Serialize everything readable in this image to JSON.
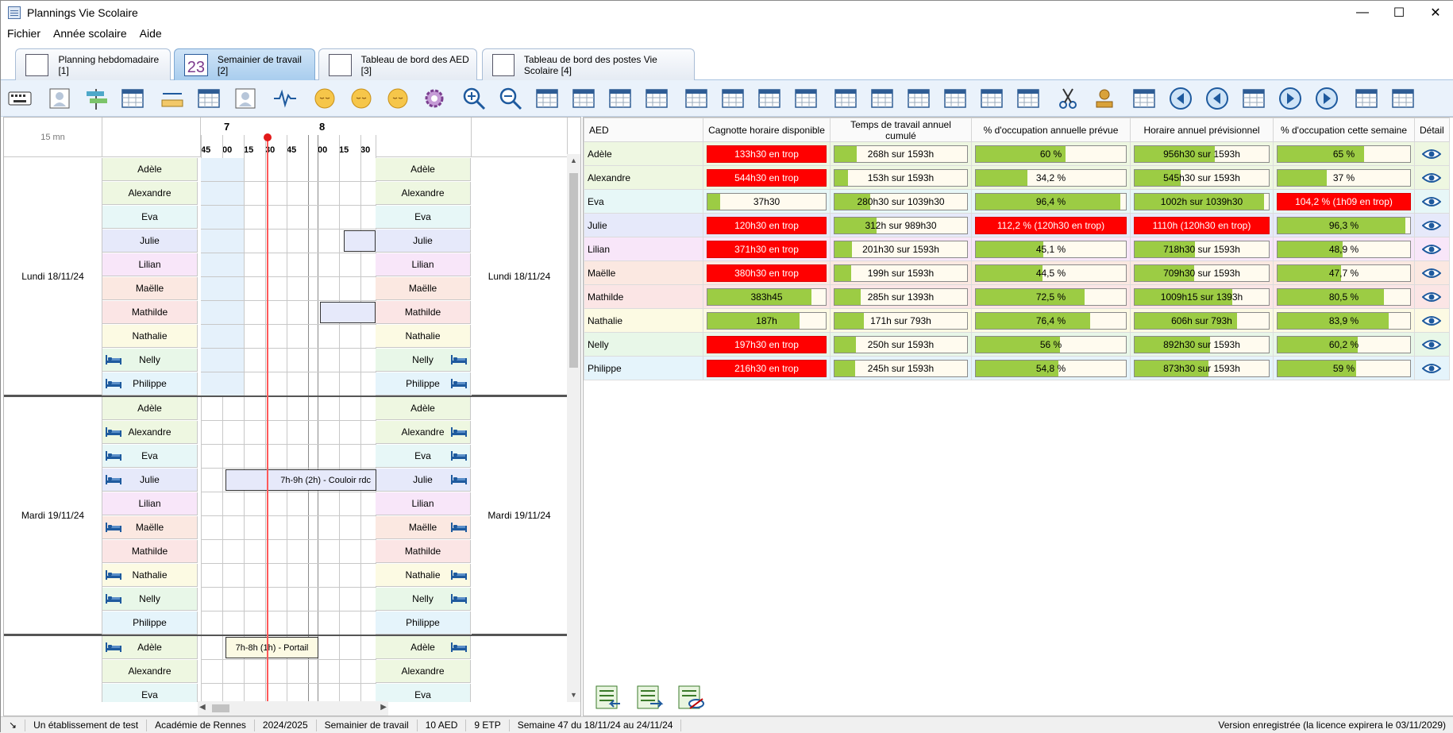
{
  "window": {
    "title": "Plannings Vie Scolaire"
  },
  "menu": [
    "Fichier",
    "Année scolaire",
    "Aide"
  ],
  "tabs": [
    {
      "label": "Planning hebdomadaire [1]",
      "active": false
    },
    {
      "label": "Semainier de travail [2]",
      "active": true
    },
    {
      "label": "Tableau de bord des AED [3]",
      "active": false
    },
    {
      "label": "Tableau de bord des postes Vie Scolaire [4]",
      "active": false
    }
  ],
  "schedule": {
    "interval_label": "15 mn",
    "hours": [
      "7",
      "8"
    ],
    "minutes": [
      "45",
      "00",
      "15",
      "30",
      "45",
      "00",
      "15",
      "30"
    ],
    "days": [
      {
        "label": "Lundi 18/11/24",
        "rows": [
          {
            "name": "Adèle",
            "bed": false,
            "color": "#eef7e1"
          },
          {
            "name": "Alexandre",
            "bed": false,
            "color": "#eef7e1"
          },
          {
            "name": "Eva",
            "bed": false,
            "color": "#e7f7f7"
          },
          {
            "name": "Julie",
            "bed": false,
            "color": "#e6e9fa"
          },
          {
            "name": "Lilian",
            "bed": false,
            "color": "#f8e6f9"
          },
          {
            "name": "Maëlle",
            "bed": false,
            "color": "#fbe8e1"
          },
          {
            "name": "Mathilde",
            "bed": false,
            "color": "#fbe5e5"
          },
          {
            "name": "Nathalie",
            "bed": false,
            "color": "#fcfae3"
          },
          {
            "name": "Nelly",
            "bed": true,
            "color": "#e8f7e8"
          },
          {
            "name": "Philippe",
            "bed": true,
            "color": "#e5f4fb"
          }
        ]
      },
      {
        "label": "Mardi 19/11/24",
        "rows": [
          {
            "name": "Adèle",
            "bed": false,
            "color": "#eef7e1"
          },
          {
            "name": "Alexandre",
            "bed": true,
            "color": "#eef7e1"
          },
          {
            "name": "Eva",
            "bed": true,
            "color": "#e7f7f7"
          },
          {
            "name": "Julie",
            "bed": true,
            "color": "#e6e9fa"
          },
          {
            "name": "Lilian",
            "bed": false,
            "color": "#f8e6f9"
          },
          {
            "name": "Maëlle",
            "bed": true,
            "color": "#fbe8e1"
          },
          {
            "name": "Mathilde",
            "bed": false,
            "color": "#fbe5e5"
          },
          {
            "name": "Nathalie",
            "bed": true,
            "color": "#fcfae3"
          },
          {
            "name": "Nelly",
            "bed": true,
            "color": "#e8f7e8"
          },
          {
            "name": "Philippe",
            "bed": false,
            "color": "#e5f4fb"
          }
        ]
      },
      {
        "label": "",
        "rows": [
          {
            "name": "Adèle",
            "bed": true,
            "color": "#eef7e1"
          },
          {
            "name": "Alexandre",
            "bed": false,
            "color": "#eef7e1"
          },
          {
            "name": "Eva",
            "bed": false,
            "color": "#e7f7f7"
          }
        ]
      }
    ],
    "slots": [
      {
        "label": "7h-9h (2h) - Couloir rdc",
        "day": 1,
        "row": 3
      },
      {
        "label": "7h-8h (1h) - Portail",
        "day": 2,
        "row": 0
      }
    ]
  },
  "dashboard": {
    "columns": [
      "AED",
      "Cagnotte horaire disponible",
      "Temps de travail annuel cumulé",
      "% d'occupation annuelle prévue",
      "Horaire annuel prévisionnel",
      "% d'occupation cette semaine",
      "Détail"
    ],
    "rows": [
      {
        "name": "Adèle",
        "color": "#eef7e1",
        "cagnotte": {
          "text": "133h30 en trop",
          "red": true,
          "fill": 1
        },
        "cumul": {
          "text": "268h sur 1593h",
          "fill": 0.17
        },
        "occ_annee": {
          "text": "60 %",
          "red": false,
          "fill": 0.6
        },
        "horaire": {
          "text": "956h30 sur 1593h",
          "red": false,
          "fill": 0.6
        },
        "occ_semaine": {
          "text": "65 %",
          "red": false,
          "fill": 0.65
        }
      },
      {
        "name": "Alexandre",
        "color": "#eef7e1",
        "cagnotte": {
          "text": "544h30 en trop",
          "red": true,
          "fill": 1
        },
        "cumul": {
          "text": "153h sur 1593h",
          "fill": 0.1
        },
        "occ_annee": {
          "text": "34,2 %",
          "red": false,
          "fill": 0.342
        },
        "horaire": {
          "text": "545h30 sur 1593h",
          "red": false,
          "fill": 0.342
        },
        "occ_semaine": {
          "text": "37 %",
          "red": false,
          "fill": 0.37
        }
      },
      {
        "name": "Eva",
        "color": "#e7f7f7",
        "cagnotte": {
          "text": "37h30",
          "red": false,
          "fill": 0.11
        },
        "cumul": {
          "text": "280h30 sur 1039h30",
          "fill": 0.27
        },
        "occ_annee": {
          "text": "96,4 %",
          "red": false,
          "fill": 0.964
        },
        "horaire": {
          "text": "1002h sur 1039h30",
          "red": false,
          "fill": 0.964
        },
        "occ_semaine": {
          "text": "104,2 % (1h09 en trop)",
          "red": true,
          "fill": 1
        }
      },
      {
        "name": "Julie",
        "color": "#e6e9fa",
        "cagnotte": {
          "text": "120h30 en trop",
          "red": true,
          "fill": 1
        },
        "cumul": {
          "text": "312h sur 989h30",
          "fill": 0.32
        },
        "occ_annee": {
          "text": "112,2 % (120h30 en trop)",
          "red": true,
          "fill": 1
        },
        "horaire": {
          "text": "1110h (120h30 en trop)",
          "red": true,
          "fill": 1
        },
        "occ_semaine": {
          "text": "96,3 %",
          "red": false,
          "fill": 0.963
        }
      },
      {
        "name": "Lilian",
        "color": "#f8e6f9",
        "cagnotte": {
          "text": "371h30 en trop",
          "red": true,
          "fill": 1
        },
        "cumul": {
          "text": "201h30 sur 1593h",
          "fill": 0.13
        },
        "occ_annee": {
          "text": "45,1 %",
          "red": false,
          "fill": 0.451
        },
        "horaire": {
          "text": "718h30 sur 1593h",
          "red": false,
          "fill": 0.451
        },
        "occ_semaine": {
          "text": "48,9 %",
          "red": false,
          "fill": 0.489
        }
      },
      {
        "name": "Maëlle",
        "color": "#fbe8e1",
        "cagnotte": {
          "text": "380h30 en trop",
          "red": true,
          "fill": 1
        },
        "cumul": {
          "text": "199h sur 1593h",
          "fill": 0.125
        },
        "occ_annee": {
          "text": "44,5 %",
          "red": false,
          "fill": 0.445
        },
        "horaire": {
          "text": "709h30 sur 1593h",
          "red": false,
          "fill": 0.445
        },
        "occ_semaine": {
          "text": "47,7 %",
          "red": false,
          "fill": 0.477
        }
      },
      {
        "name": "Mathilde",
        "color": "#fbe5e5",
        "cagnotte": {
          "text": "383h45",
          "red": false,
          "fill": 0.88
        },
        "cumul": {
          "text": "285h sur 1393h",
          "fill": 0.2
        },
        "occ_annee": {
          "text": "72,5 %",
          "red": false,
          "fill": 0.725
        },
        "horaire": {
          "text": "1009h15 sur 1393h",
          "red": false,
          "fill": 0.725
        },
        "occ_semaine": {
          "text": "80,5 %",
          "red": false,
          "fill": 0.805
        }
      },
      {
        "name": "Nathalie",
        "color": "#fcfae3",
        "cagnotte": {
          "text": "187h",
          "red": false,
          "fill": 0.78
        },
        "cumul": {
          "text": "171h sur 793h",
          "fill": 0.22
        },
        "occ_annee": {
          "text": "76,4 %",
          "red": false,
          "fill": 0.764
        },
        "horaire": {
          "text": "606h sur 793h",
          "red": false,
          "fill": 0.764
        },
        "occ_semaine": {
          "text": "83,9 %",
          "red": false,
          "fill": 0.839
        }
      },
      {
        "name": "Nelly",
        "color": "#e8f7e8",
        "cagnotte": {
          "text": "197h30 en trop",
          "red": true,
          "fill": 1
        },
        "cumul": {
          "text": "250h sur 1593h",
          "fill": 0.16
        },
        "occ_annee": {
          "text": "56 %",
          "red": false,
          "fill": 0.56
        },
        "horaire": {
          "text": "892h30 sur 1593h",
          "red": false,
          "fill": 0.56
        },
        "occ_semaine": {
          "text": "60,2 %",
          "red": false,
          "fill": 0.602
        }
      },
      {
        "name": "Philippe",
        "color": "#e5f4fb",
        "cagnotte": {
          "text": "216h30 en trop",
          "red": true,
          "fill": 1
        },
        "cumul": {
          "text": "245h sur 1593h",
          "fill": 0.155
        },
        "occ_annee": {
          "text": "54,8 %",
          "red": false,
          "fill": 0.548
        },
        "horaire": {
          "text": "873h30 sur 1593h",
          "red": false,
          "fill": 0.548
        },
        "occ_semaine": {
          "text": "59 %",
          "red": false,
          "fill": 0.59
        }
      }
    ]
  },
  "status": {
    "etablissement": "Un établissement de test",
    "academie": "Académie de Rennes",
    "annee": "2024/2025",
    "vue": "Semainier de travail",
    "aed": "10 AED",
    "etp": "9 ETP",
    "semaine": "Semaine 47 du 18/11/24 au 24/11/24",
    "licence": "Version enregistrée (la licence expirera le 03/11/2029)"
  },
  "colors": {
    "accent": "#2e5c94",
    "over": "#ff0000",
    "fill": "#9ccc44",
    "now": "#e21a1a"
  }
}
